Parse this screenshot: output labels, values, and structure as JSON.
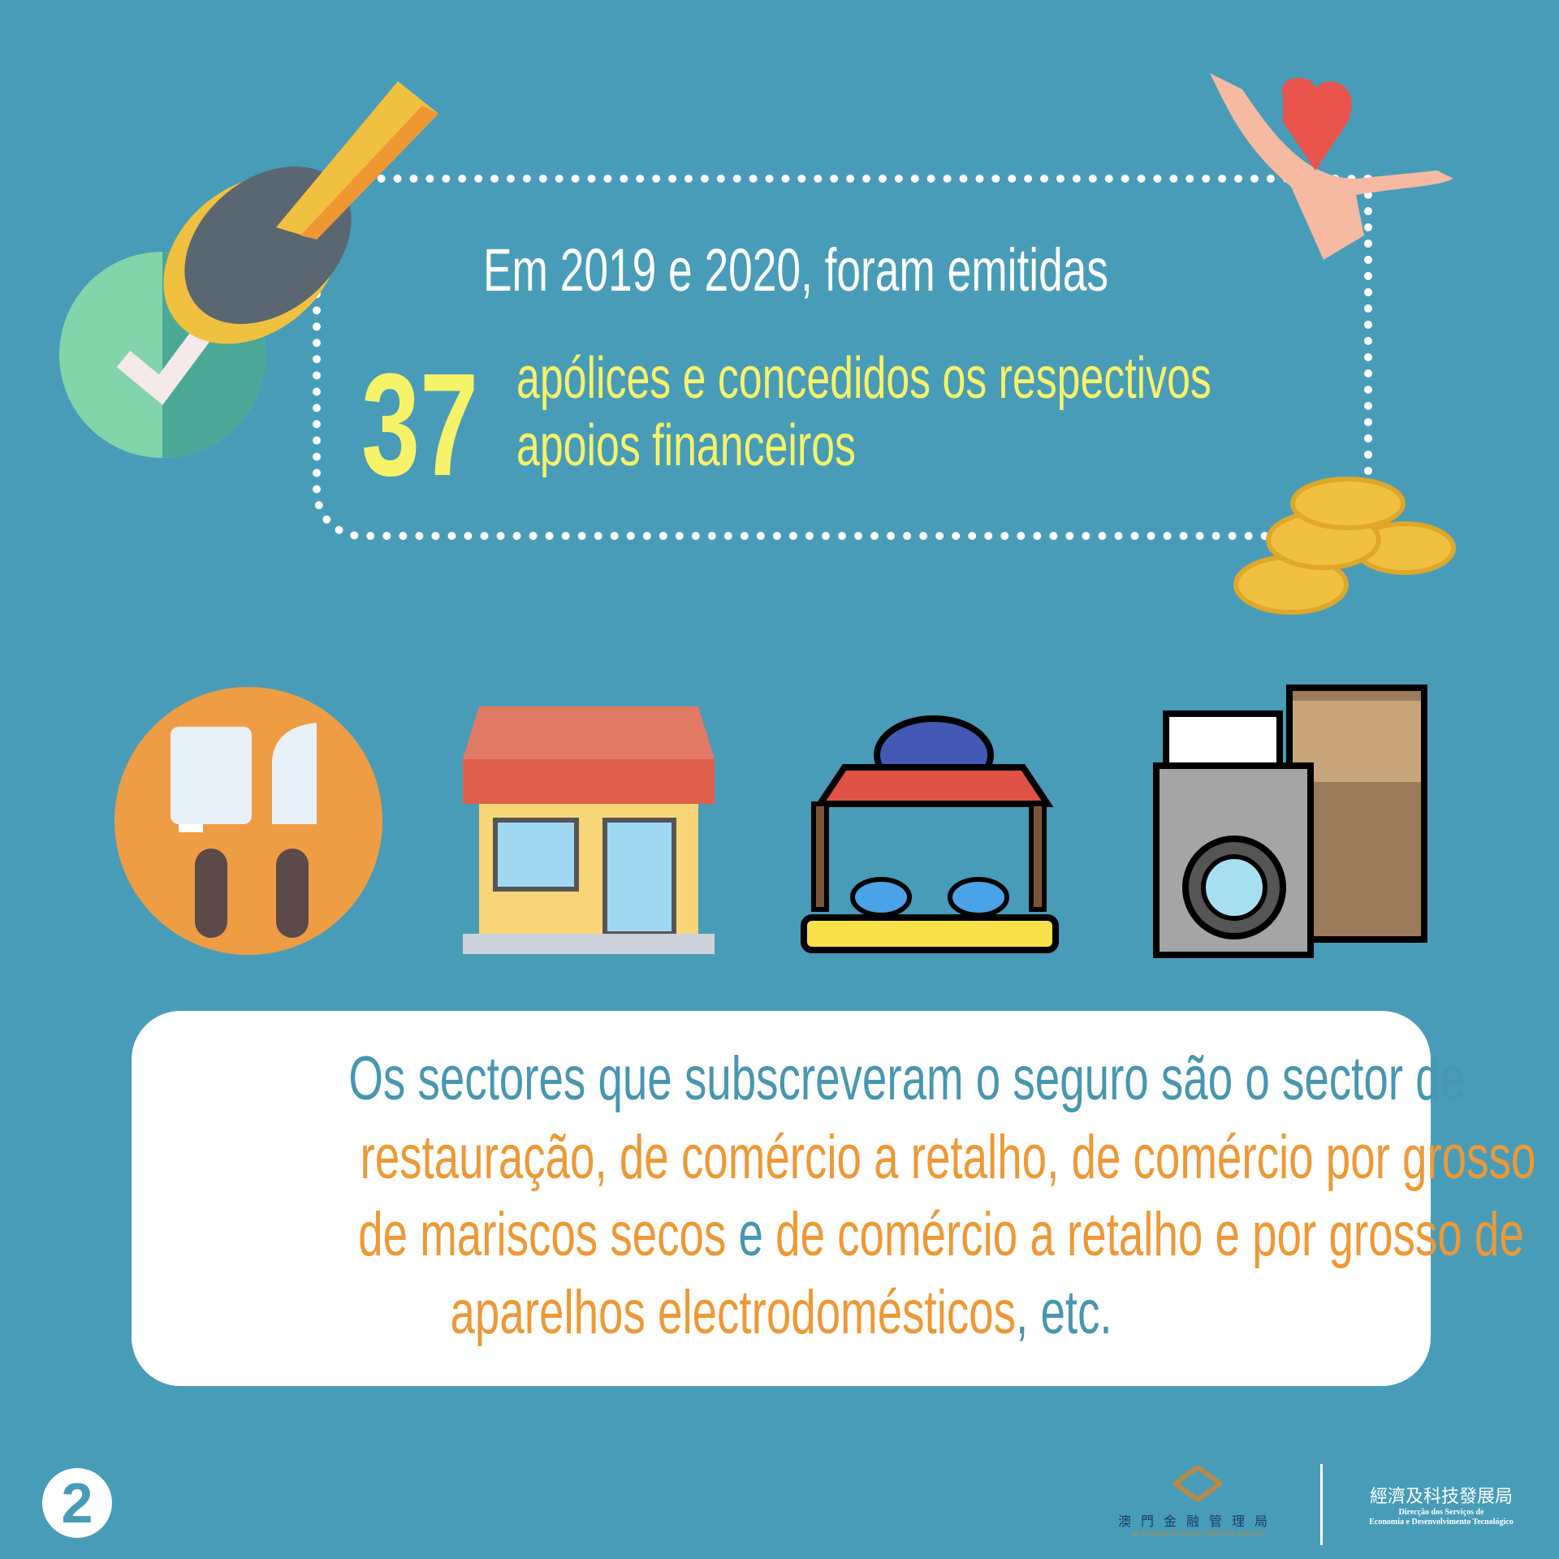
{
  "header": {
    "line1": "Em 2019 e 2020, foram emitidas",
    "count": "37",
    "line2": "apólices  e  concedidos  os  respectivos",
    "line3": "apoios financeiros"
  },
  "icons": [
    "stamp-check-icon",
    "hands-heart-icon",
    "coins-icon",
    "restaurant-icon",
    "store-icon",
    "fish-stall-icon",
    "appliances-icon"
  ],
  "card": {
    "line1": "Os sectores que subscreveram o seguro são o sector de",
    "line2": "restauração, de comércio a retalho, de comércio por grosso",
    "line3a": "de mariscos secos",
    "line3b": " e ",
    "line3c": "de comércio a retalho e por grosso de",
    "line4a": "aparelhos electrodomésticos",
    "line4b": ", etc."
  },
  "footer": {
    "page": "2",
    "amcm_zh": "澳門金融管理局",
    "amcm_pt": "AUTORIDADE MONETÁRIA DE MACAU",
    "dset_zh": "經濟及科技發展局",
    "dset_pt1": "Direcção dos Serviços de",
    "dset_pt2": "Economia e Desenvolvimento Tecnológico"
  },
  "colors": {
    "background": "#489cb8",
    "highlight": "#f6f36a",
    "orange": "#ee9936",
    "blue": "#4896b2"
  }
}
